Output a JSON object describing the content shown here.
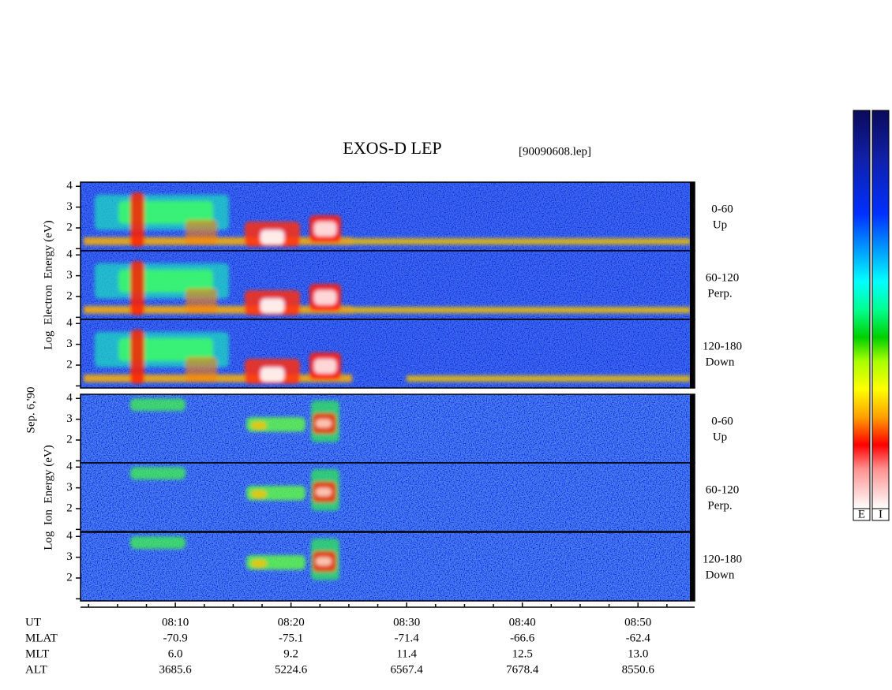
{
  "chart_data": {
    "type": "spectrogram",
    "title": "EXOS-D LEP",
    "subtitle": "[90090608.lep]",
    "date_label": "Sep. 6,'90",
    "groups": [
      {
        "ylabel": "Log  Electron  Energy (eV)",
        "panels": [
          {
            "angle": "0-60",
            "direction": "Up"
          },
          {
            "angle": "60-120",
            "direction": "Perp."
          },
          {
            "angle": "120-180",
            "direction": "Down"
          }
        ]
      },
      {
        "ylabel": "Log  Ion  Energy (eV)",
        "panels": [
          {
            "angle": "0-60",
            "direction": "Up"
          },
          {
            "angle": "60-120",
            "direction": "Perp."
          },
          {
            "angle": "120-180",
            "direction": "Down"
          }
        ]
      }
    ],
    "ylim": [
      0.9,
      4.2
    ],
    "yticks": [
      2,
      3,
      4
    ],
    "y_minor_ticks": [
      1
    ],
    "xlim": [
      481.8,
      534.9
    ],
    "x_row_label": "UT",
    "xticks": [
      {
        "value": 490,
        "label": "08:10"
      },
      {
        "value": 500,
        "label": "08:20"
      },
      {
        "value": 510,
        "label": "08:30"
      },
      {
        "value": 520,
        "label": "08:40"
      },
      {
        "value": 530,
        "label": "08:50"
      }
    ],
    "x_minor_ticks": [
      482.5,
      485,
      487.5,
      492.5,
      495,
      497.5,
      502.5,
      505,
      507.5,
      512.5,
      515,
      517.5,
      522.5,
      525,
      527.5,
      532.5
    ],
    "orbit_rows": [
      {
        "label": "MLAT",
        "values": [
          "-70.9",
          "-75.1",
          "-71.4",
          "-66.6",
          "-62.4"
        ]
      },
      {
        "label": "MLT",
        "values": [
          "6.0",
          "9.2",
          "11.4",
          "12.5",
          "13.0"
        ]
      },
      {
        "label": "ALT",
        "values": [
          "3685.6",
          "5224.6",
          "6567.4",
          "7678.4",
          "8550.6"
        ]
      }
    ],
    "colorbar_labels": [
      "E",
      "I"
    ]
  }
}
